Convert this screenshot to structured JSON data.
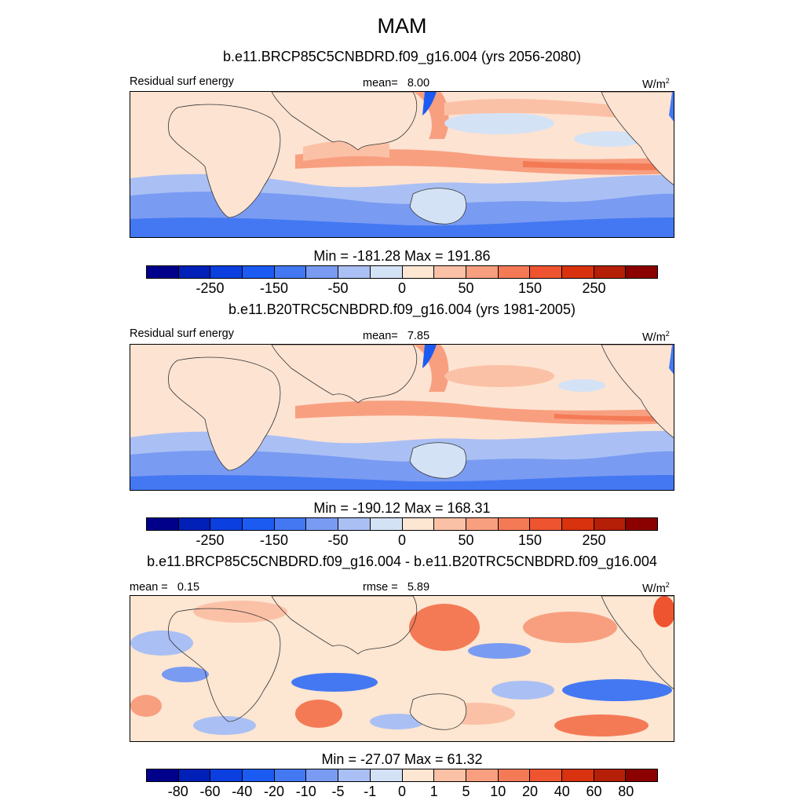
{
  "title": "MAM",
  "palette": [
    "#00008b",
    "#0020b8",
    "#0b3fdf",
    "#1c5bf2",
    "#4378f2",
    "#7a9bf2",
    "#aac0f4",
    "#d4e2f6",
    "#fde6d2",
    "#fbc1a6",
    "#f89f80",
    "#f47a56",
    "#ee5430",
    "#d9320f",
    "#b51f07",
    "#8b0000"
  ],
  "panels": [
    {
      "subtitle": "b.e11.BRCP85C5CNBDRD.f09_g16.004 (yrs 2056-2080)",
      "left_label": "Residual surf energy",
      "mean_label": "mean=",
      "mean_value": "8.00",
      "units": "W/m",
      "units_exp": "2",
      "minmax": "Min = -181.28 Max = 191.86",
      "ticks": [
        "-250",
        "-150",
        "-50",
        "0",
        "50",
        "150",
        "250"
      ]
    },
    {
      "subtitle": "b.e11.B20TRC5CNBDRD.f09_g16.004 (yrs 1981-2005)",
      "left_label": "Residual surf energy",
      "mean_label": "mean=",
      "mean_value": "7.85",
      "units": "W/m",
      "units_exp": "2",
      "minmax": "Min = -190.12 Max = 168.31",
      "ticks": [
        "-250",
        "-150",
        "-50",
        "0",
        "50",
        "150",
        "250"
      ]
    },
    {
      "subtitle": "b.e11.BRCP85C5CNBDRD.f09_g16.004 - b.e11.B20TRC5CNBDRD.f09_g16.004",
      "left_label": "mean =",
      "left_value": "0.15",
      "mean_label": "rmse =",
      "mean_value": "5.89",
      "units": "W/m",
      "units_exp": "2",
      "minmax": "Min = -27.07 Max =  61.32",
      "ticks": [
        "-80",
        "-60",
        "-40",
        "-20",
        "-10",
        "-5",
        "-1",
        "0",
        "1",
        "5",
        "10",
        "20",
        "40",
        "60",
        "80"
      ]
    }
  ]
}
